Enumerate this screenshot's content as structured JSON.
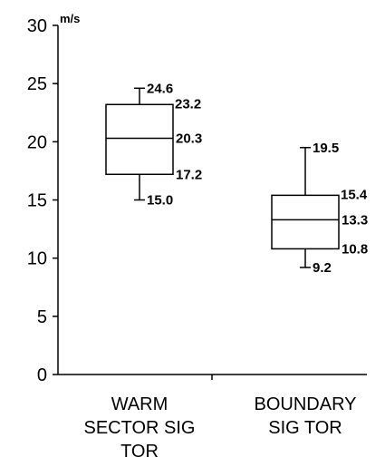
{
  "chart_data": {
    "type": "box",
    "title": "",
    "xlabel": "",
    "ylabel": "m/s",
    "ylim": [
      0,
      30
    ],
    "yticks": [
      0,
      5,
      10,
      15,
      20,
      25,
      30
    ],
    "grid": false,
    "categories": [
      [
        "WARM",
        "SECTOR SIG",
        "TOR"
      ],
      [
        "BOUNDARY",
        "SIG TOR"
      ]
    ],
    "boxes": [
      {
        "whisker_high": 24.6,
        "q3": 23.2,
        "median": 20.3,
        "q1": 17.2,
        "whisker_low": 15.0,
        "labels": {
          "whisker_high": "24.6",
          "q3": "23.2",
          "median": "20.3",
          "q1": "17.2",
          "whisker_low": "15.0"
        }
      },
      {
        "whisker_high": 19.5,
        "q3": 15.4,
        "median": 13.3,
        "q1": 10.8,
        "whisker_low": 9.2,
        "labels": {
          "whisker_high": "19.5",
          "q3": "15.4",
          "median": "13.3",
          "q1": "10.8",
          "whisker_low": "9.2"
        }
      }
    ]
  }
}
